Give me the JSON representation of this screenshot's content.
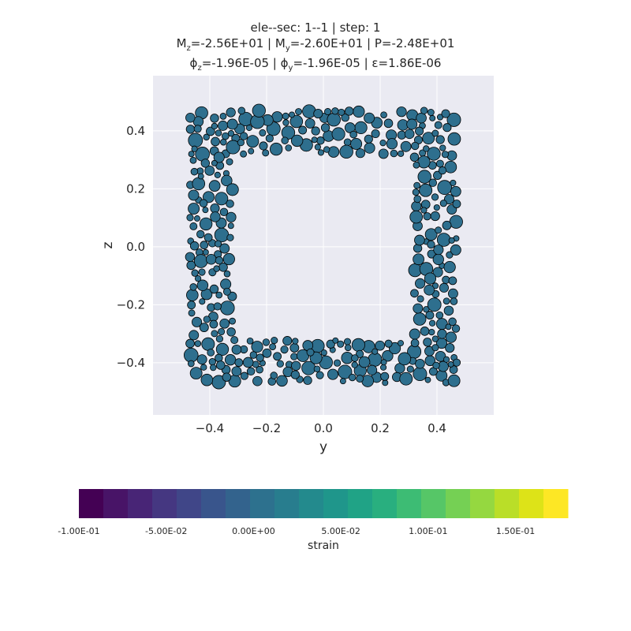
{
  "title": {
    "line1": "ele--sec: 1--1 | step: 1",
    "line2_parts": [
      "M",
      "z",
      "=-2.56E+01 | M",
      "y",
      "=-2.60E+01 | P=-2.48E+01"
    ],
    "line3_parts": [
      "ϕ",
      "z",
      "=-1.96E-05 | ϕ",
      "y",
      "=-1.96E-05 | ε=1.86E-06"
    ]
  },
  "chart_data": {
    "type": "scatter",
    "description_of_content": "fiber section: fibers filling a square hollow section, colored by strain",
    "xlabel": "y",
    "ylabel": "z",
    "xlim": [
      -0.6,
      0.6
    ],
    "ylim": [
      -0.58,
      0.59
    ],
    "xticks": [
      "−0.4",
      "−0.2",
      "0.0",
      "0.2",
      "0.4"
    ],
    "xtick_values": [
      -0.4,
      -0.2,
      0.0,
      0.2,
      0.4
    ],
    "yticks": [
      "0.4",
      "0.2",
      "0.0",
      "−0.2",
      "−0.4"
    ],
    "ytick_values": [
      0.4,
      0.2,
      0.0,
      -0.2,
      -0.4
    ],
    "grid": true,
    "section": {
      "outer": [
        -0.5,
        0.5,
        -0.5,
        0.5
      ],
      "inner": [
        -0.3,
        0.3,
        -0.3,
        0.3
      ]
    },
    "fiber_strain": 0.0,
    "fiber_color": "#2e6f8e",
    "fiber_edge_color": "#000000",
    "face_color": "#eaeaf2",
    "colorbar": {
      "label": "strain",
      "ticks": [
        "-1.00E-01",
        "-5.00E-02",
        "0.00E+00",
        "5.00E-02",
        "1.00E-01",
        "1.50E-01"
      ],
      "tick_values": [
        -0.1,
        -0.05,
        0.0,
        0.05,
        0.1,
        0.15
      ],
      "range": [
        -0.1,
        0.18
      ],
      "colors": [
        "#440154",
        "#481467",
        "#482576",
        "#453781",
        "#404688",
        "#39558c",
        "#33638d",
        "#2d718e",
        "#287d8e",
        "#238a8d",
        "#1f968b",
        "#20a386",
        "#29af7f",
        "#3dbc74",
        "#56c667",
        "#75d054",
        "#95d840",
        "#bade28",
        "#dde318",
        "#fde725"
      ]
    }
  }
}
